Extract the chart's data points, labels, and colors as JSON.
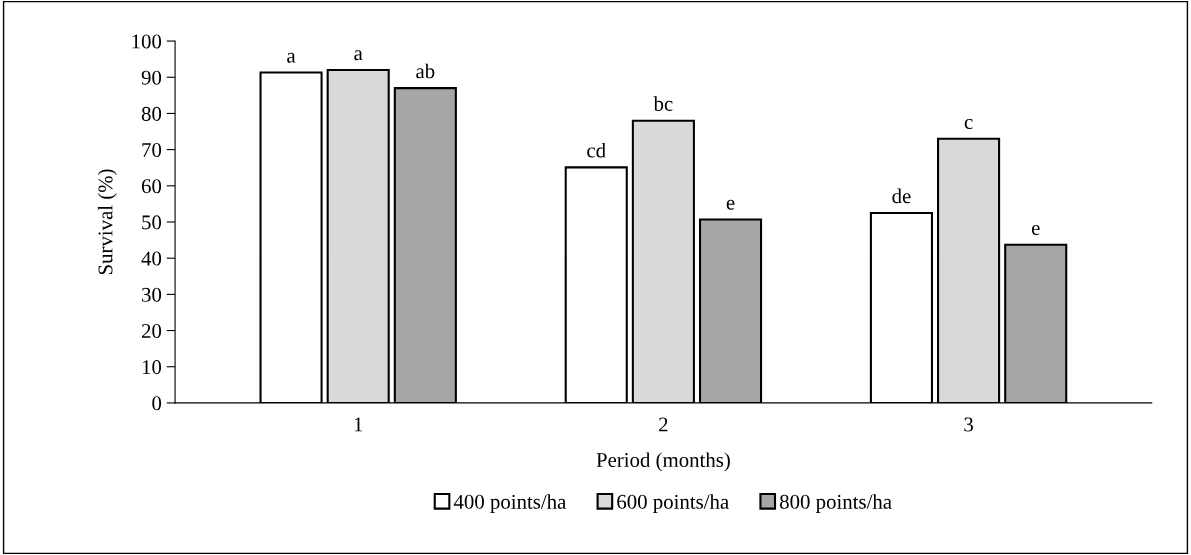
{
  "chart_data": {
    "type": "bar",
    "xlabel": "Period (months)",
    "ylabel": "Survival (%)",
    "categories": [
      "1",
      "2",
      "3"
    ],
    "series": [
      {
        "name": "400 points/ha",
        "color": "#ffffff",
        "values": [
          91.3,
          65.1,
          52.5
        ],
        "value_labels": [
          "a",
          "cd",
          "de"
        ]
      },
      {
        "name": "600 points/ha",
        "color": "#d9d9d9",
        "values": [
          92.0,
          78.0,
          73.0
        ],
        "value_labels": [
          "a",
          "bc",
          "c"
        ]
      },
      {
        "name": "800 points/ha",
        "color": "#a6a6a6",
        "values": [
          87.0,
          50.7,
          43.7
        ],
        "value_labels": [
          "ab",
          "e",
          "e"
        ]
      }
    ],
    "ylim": [
      0,
      100
    ],
    "yticks": [
      0,
      10,
      20,
      30,
      40,
      50,
      60,
      70,
      80,
      90,
      100
    ],
    "grid": false,
    "legend": "bottom"
  }
}
